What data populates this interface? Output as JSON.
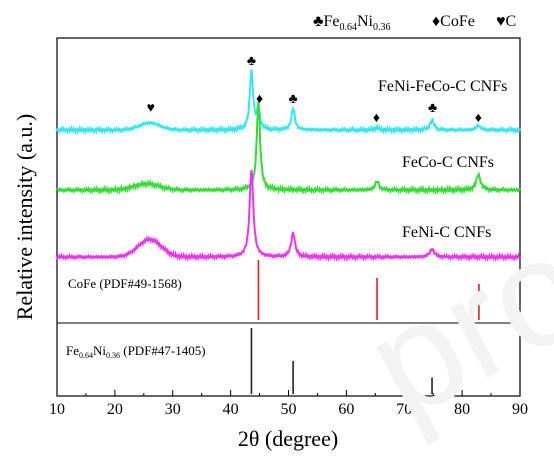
{
  "watermark": "proof",
  "chart_data": {
    "type": "line",
    "xlabel": "2θ (degree)",
    "ylabel": "Relative intensity (a.u.)",
    "xlim": [
      10,
      90
    ],
    "x_ticks": [
      10,
      20,
      30,
      40,
      50,
      60,
      70,
      80,
      90
    ],
    "legend": [
      {
        "symbol": "♣",
        "label_main": "Fe",
        "sub1": "0.64",
        "label_mid": "Ni",
        "sub2": "0.36"
      },
      {
        "symbol": "♦",
        "label": "CoFe"
      },
      {
        "symbol": "♥",
        "label": "C"
      }
    ],
    "series": [
      {
        "name": "FeNi-FeCo-C CNFs",
        "color": "#33e6f0",
        "broad": [
          [
            26,
            0.09,
            1.8
          ]
        ],
        "peaks": [
          [
            43.6,
            0.75,
            0.35
          ],
          [
            44.8,
            0.25,
            0.3
          ],
          [
            50.8,
            0.28,
            0.35
          ],
          [
            65.2,
            0.03,
            0.4
          ],
          [
            74.8,
            0.13,
            0.4
          ],
          [
            82.8,
            0.06,
            0.4
          ]
        ],
        "markers": [
          {
            "x": 26.2,
            "symbol": "♥"
          },
          {
            "x": 43.6,
            "symbol": "♣"
          },
          {
            "x": 45.0,
            "symbol": "♦"
          },
          {
            "x": 50.8,
            "symbol": "♣"
          },
          {
            "x": 65.2,
            "symbol": "♦"
          },
          {
            "x": 74.9,
            "symbol": "♣"
          },
          {
            "x": 82.8,
            "symbol": "♦"
          }
        ]
      },
      {
        "name": "FeCo-C CNFs",
        "color": "#33dd33",
        "broad": [
          [
            25.5,
            0.07,
            2.2
          ]
        ],
        "peaks": [
          [
            44.8,
            1.0,
            0.35
          ],
          [
            65.3,
            0.1,
            0.4
          ],
          [
            82.8,
            0.17,
            0.45
          ]
        ]
      },
      {
        "name": "FeNi-C CNFs",
        "color": "#ee33ee",
        "broad": [
          [
            26,
            0.22,
            2.0
          ]
        ],
        "peaks": [
          [
            43.6,
            1.1,
            0.38
          ],
          [
            50.8,
            0.3,
            0.4
          ],
          [
            74.8,
            0.1,
            0.45
          ]
        ]
      }
    ],
    "references": [
      {
        "label": "CoFe (PDF#49-1568)",
        "color": "#dd2222",
        "lines": [
          [
            44.8,
            1.0
          ],
          [
            65.3,
            0.7
          ],
          [
            82.9,
            0.6
          ]
        ]
      },
      {
        "label_main": "Fe",
        "sub1": "0.64",
        "label_mid": "Ni",
        "sub2": "0.36",
        "label_tail": " (PDF#47-1405)",
        "color": "#222222",
        "lines": [
          [
            43.6,
            1.0
          ],
          [
            50.8,
            0.5
          ],
          [
            74.8,
            0.25
          ]
        ]
      }
    ]
  }
}
